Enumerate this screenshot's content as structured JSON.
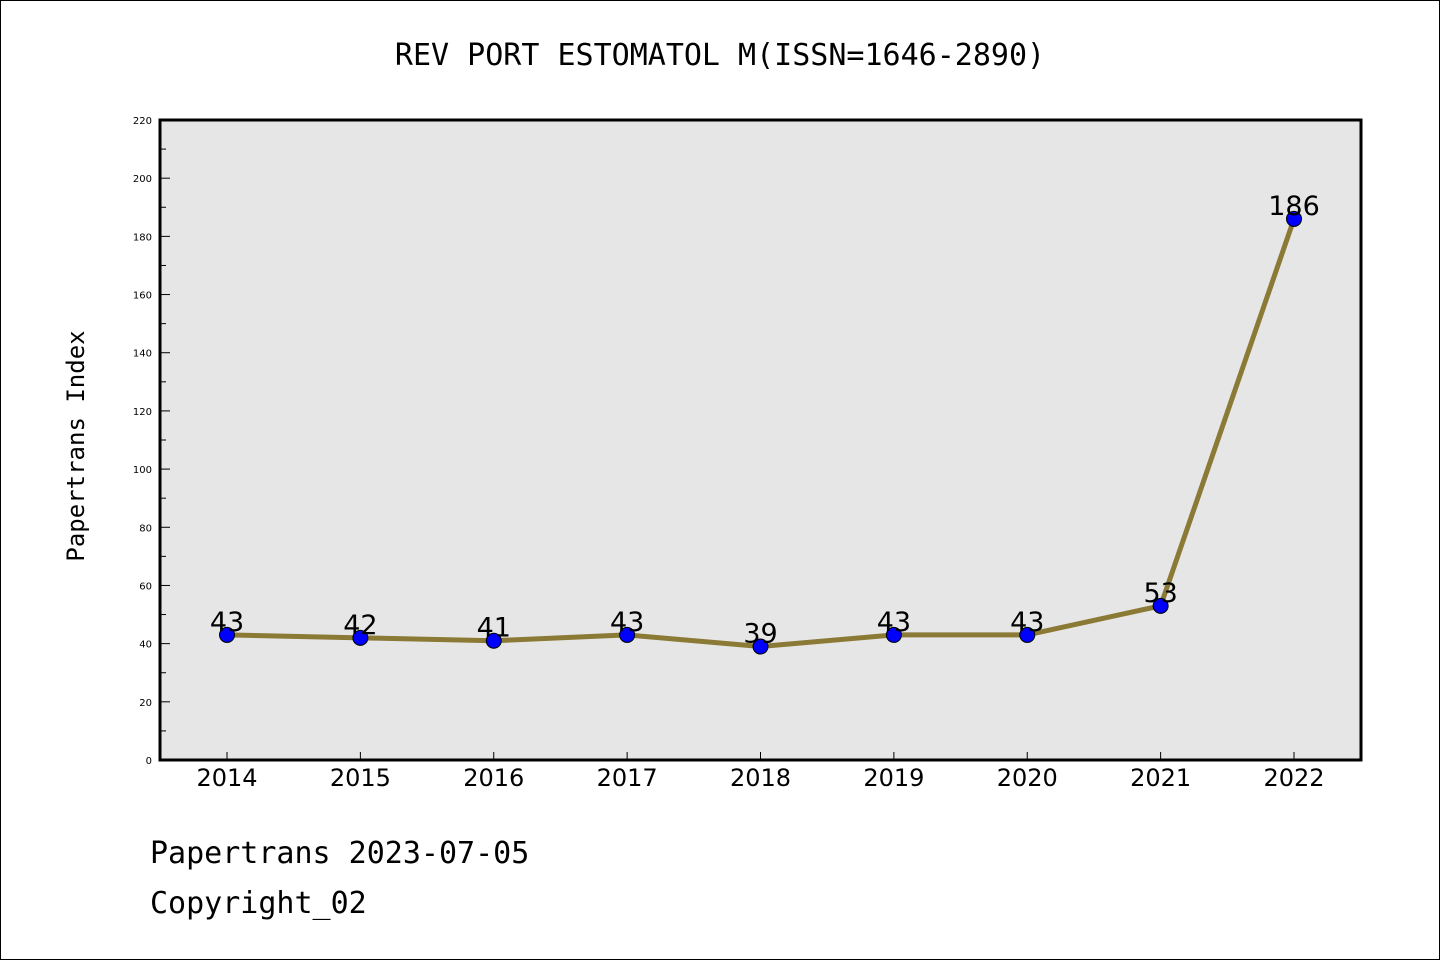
{
  "chart_data": {
    "type": "line",
    "title": "REV PORT ESTOMATOL M(ISSN=1646-2890)",
    "ylabel": "Papertrans Index",
    "xlabel": "",
    "categories": [
      "2014",
      "2015",
      "2016",
      "2017",
      "2018",
      "2019",
      "2020",
      "2021",
      "2022"
    ],
    "series": [
      {
        "values": [
          43,
          42,
          41,
          43,
          39,
          43,
          43,
          53,
          186
        ]
      }
    ],
    "data_labels": [
      "43",
      "42",
      "41",
      "43",
      "39",
      "43",
      "43",
      "53",
      "186"
    ],
    "ylim": [
      0,
      220
    ],
    "yticks": [
      0,
      20,
      40,
      60,
      80,
      100,
      120,
      140,
      160,
      180,
      200,
      220
    ],
    "grid": false,
    "legend": "none",
    "colors": {
      "line": "#8B7A35",
      "marker": "#0000FF",
      "plot_background": "#E6E6E6"
    }
  },
  "footer": {
    "line1": "Papertrans 2023-07-05",
    "line2": "Copyright_02"
  }
}
